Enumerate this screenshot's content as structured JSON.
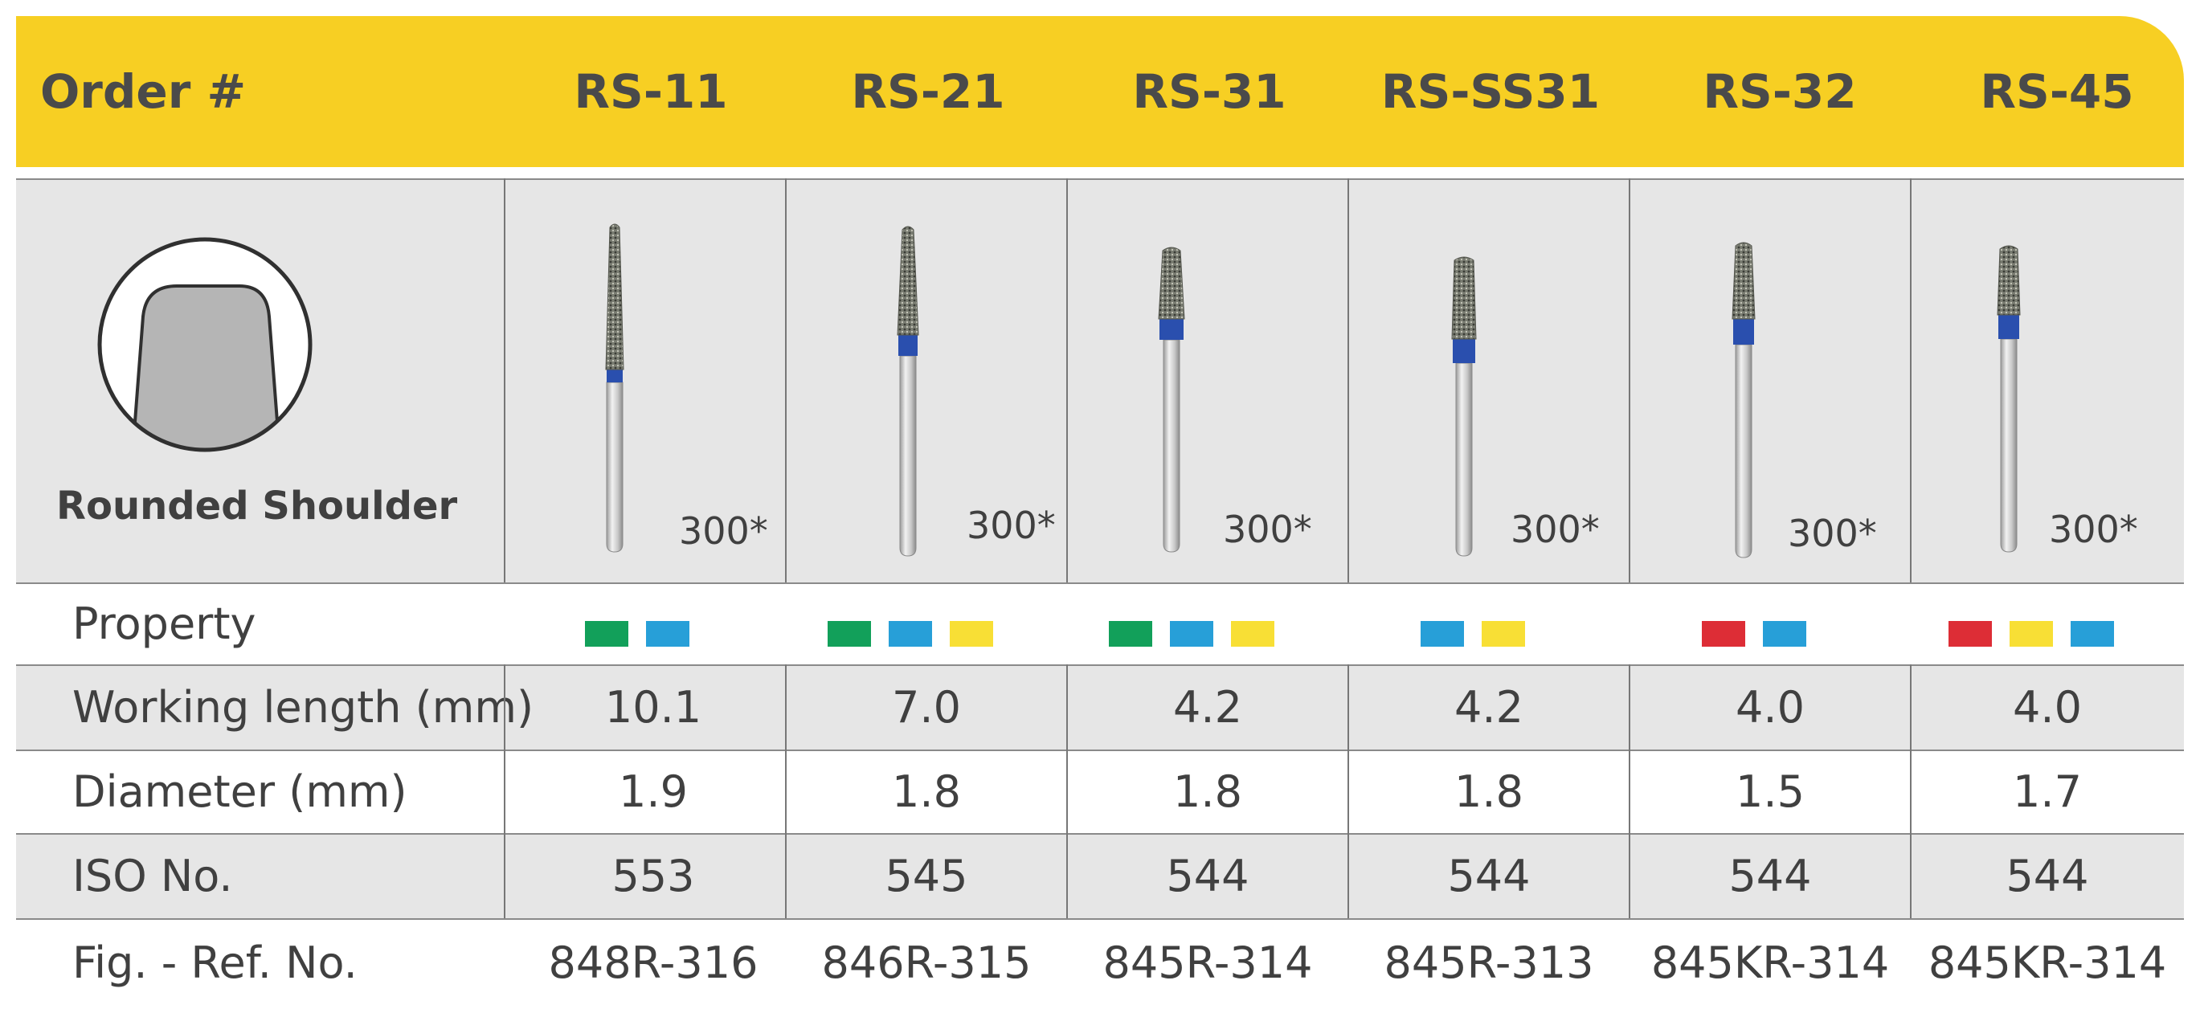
{
  "header": {
    "label": "Order #",
    "products": [
      "RS-11",
      "RS-21",
      "RS-31",
      "RS-SS31",
      "RS-32",
      "RS-45"
    ]
  },
  "shape": {
    "name": "Rounded Shoulder",
    "icon": "rounded-shoulder-icon"
  },
  "grit_labels": [
    "300*",
    "300*",
    "300*",
    "300*",
    "300*",
    "300*"
  ],
  "rows": {
    "property": {
      "label": "Property",
      "swatches": [
        [
          "#12a05a",
          "#279fd8"
        ],
        [
          "#12a05a",
          "#279fd8",
          "#f8df35"
        ],
        [
          "#12a05a",
          "#279fd8",
          "#f8df35"
        ],
        [
          "#279fd8",
          "#f8df35"
        ],
        [
          "#dd2d36",
          "#279fd8"
        ],
        [
          "#dd2d36",
          "#f8df35",
          "#279fd8"
        ]
      ]
    },
    "working_length": {
      "label": "Working length (mm)",
      "values": [
        "10.1",
        "7.0",
        "4.2",
        "4.2",
        "4.0",
        "4.0"
      ]
    },
    "diameter": {
      "label": "Diameter (mm)",
      "values": [
        "1.9",
        "1.8",
        "1.8",
        "1.8",
        "1.5",
        "1.7"
      ]
    },
    "iso": {
      "label": "ISO No.",
      "values": [
        "553",
        "545",
        "544",
        "544",
        "544",
        "544"
      ]
    },
    "ref": {
      "label": "Fig. - Ref. No.",
      "values": [
        "848R-316",
        "846R-315",
        "845R-314",
        "845R-313",
        "845KR-314",
        "845KR-314"
      ]
    }
  },
  "colors": {
    "header_yellow": "#f7cf23",
    "band_blue": "#2a4fae",
    "cell_grey": "#e6e6e6"
  }
}
